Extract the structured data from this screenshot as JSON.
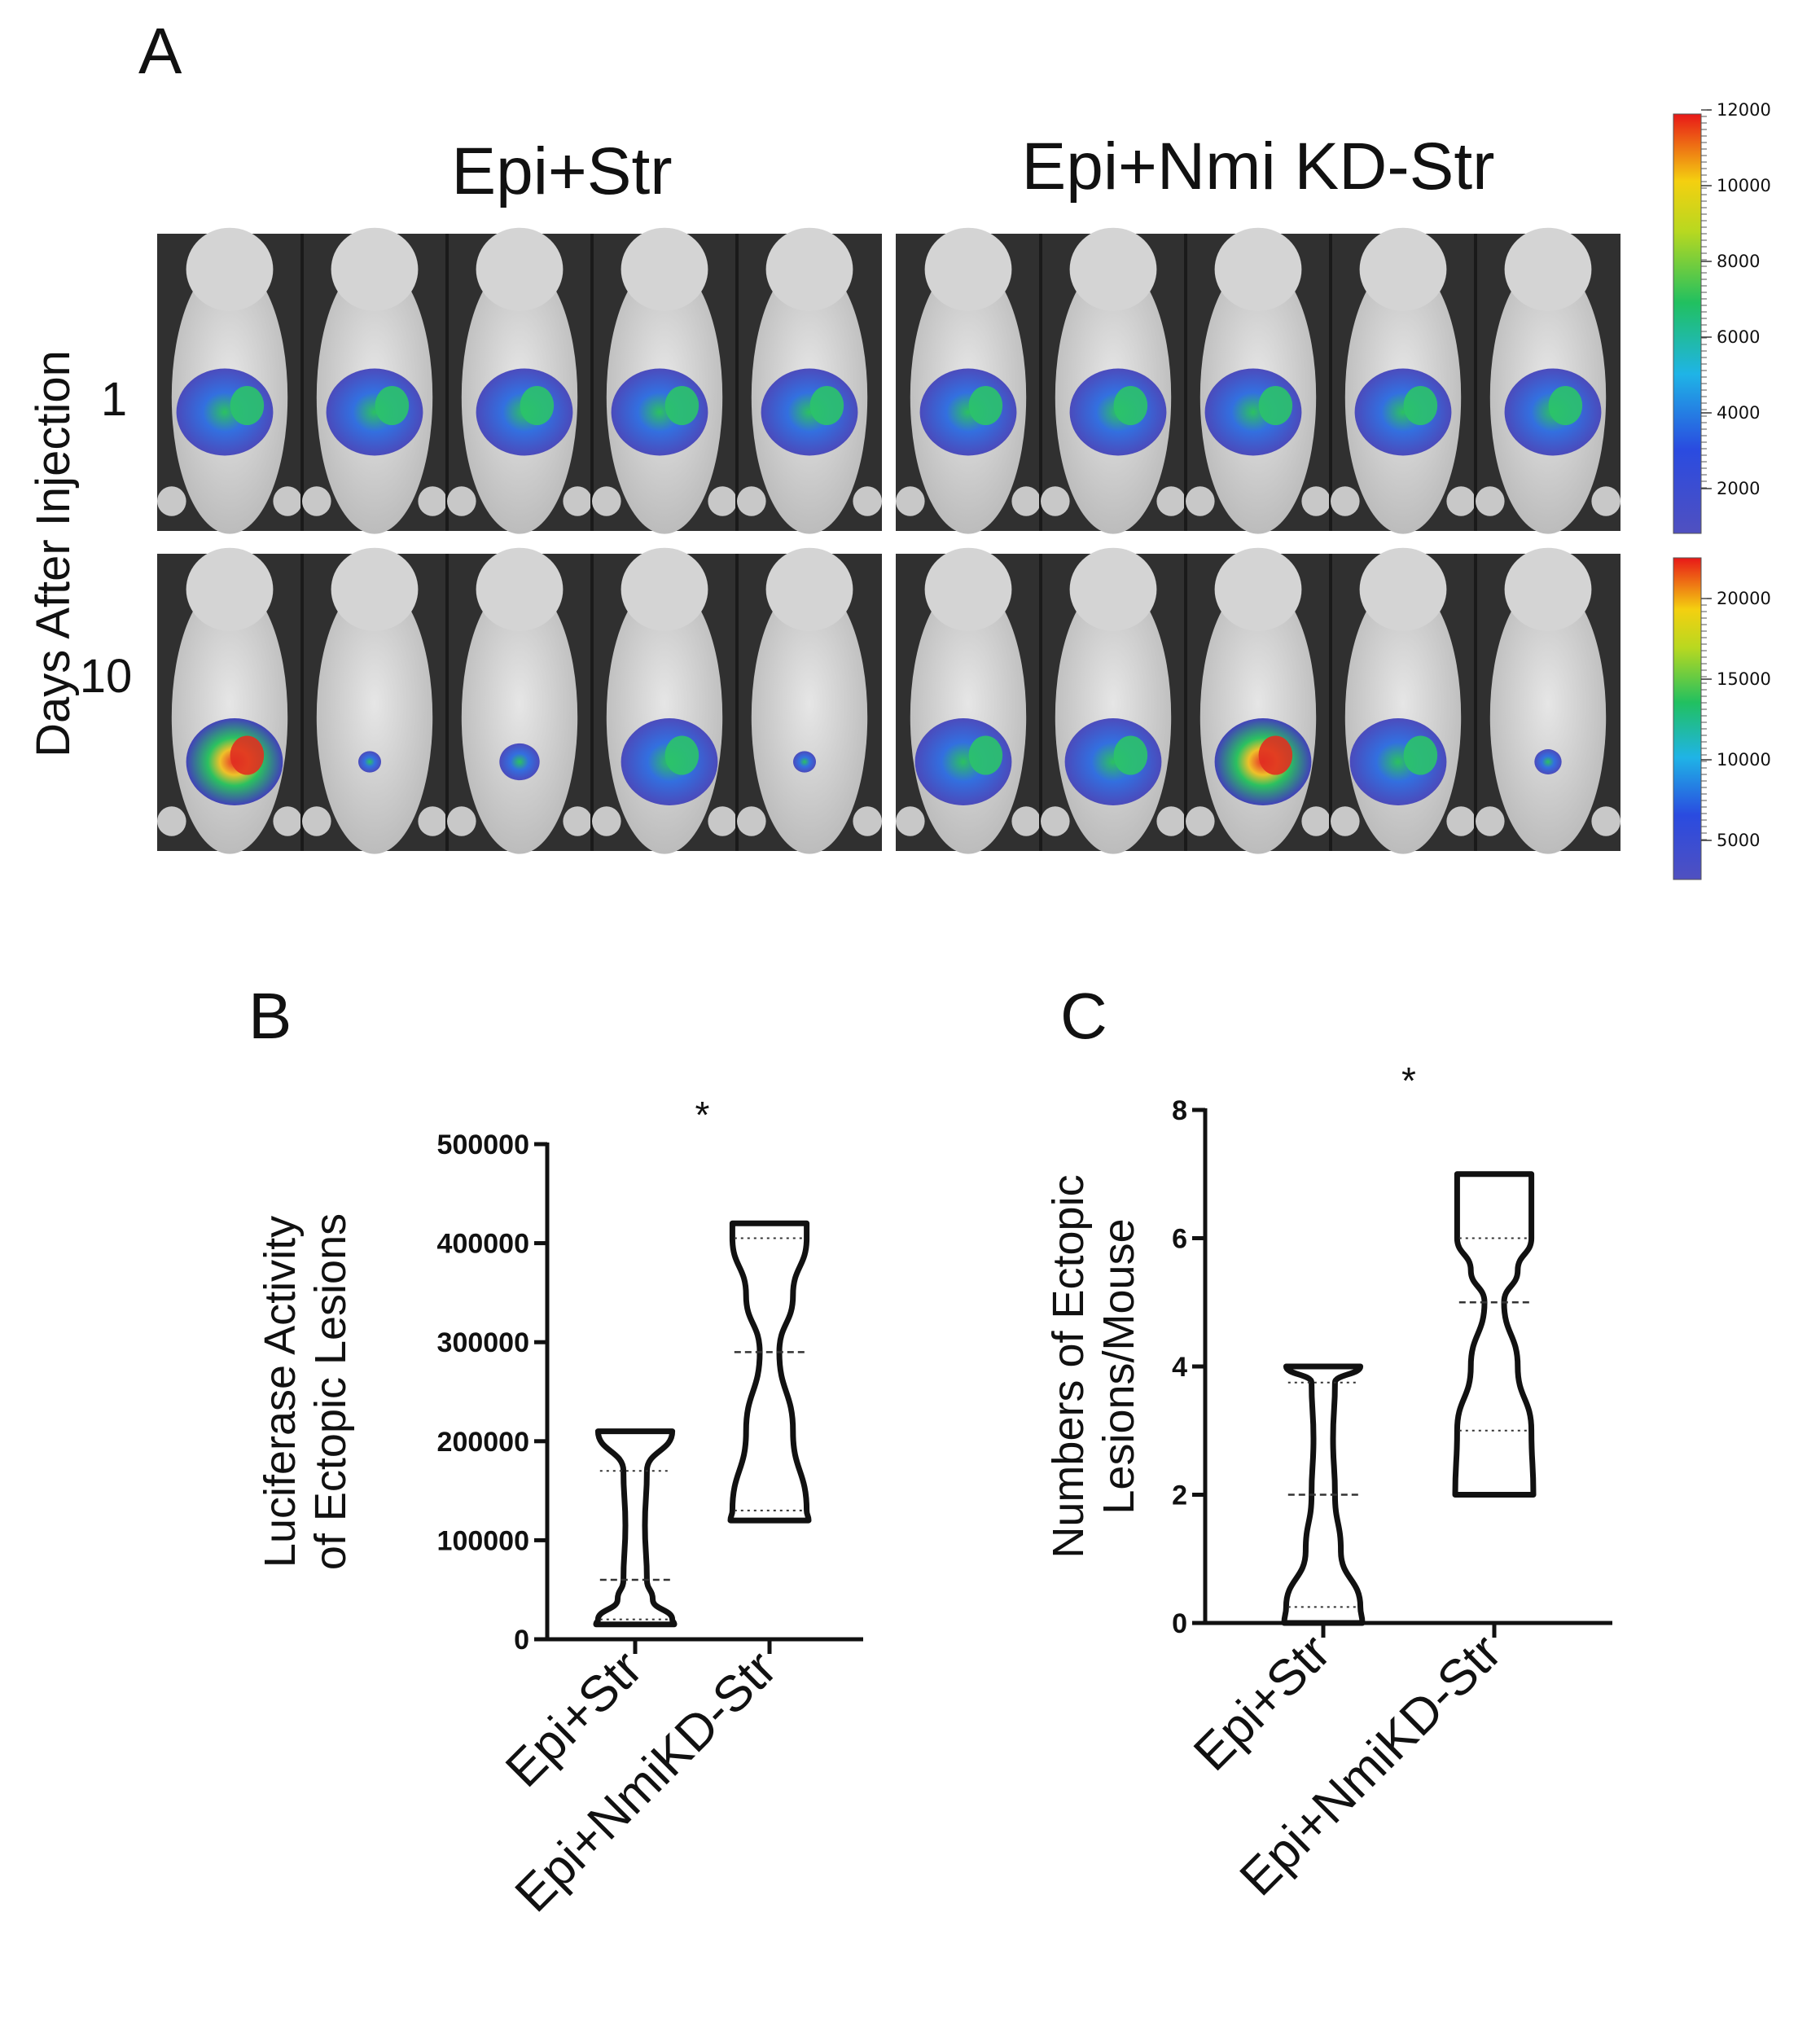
{
  "panel_a": {
    "letter": "A",
    "groups": [
      "Epi+Str",
      "Epi+Nmi KD-Str"
    ],
    "y_axis_title": "Days After Injection",
    "rows": [
      "1",
      "10"
    ],
    "scale_top": {
      "ticks": [
        "12000",
        "10000",
        "8000",
        "6000",
        "4000",
        "2000"
      ]
    },
    "scale_bottom": {
      "ticks": [
        "20000",
        "15000",
        "10000",
        "5000"
      ]
    },
    "colors": {
      "background": "#303030",
      "mouse": "#d8d8d8",
      "signal_low": "#3a3ab8",
      "signal_mid": "#22b45a",
      "signal_high": "#e02020"
    }
  },
  "chart_data": [
    {
      "panel": "B",
      "type": "violin",
      "title": "",
      "significance": "*",
      "categories": [
        "Epi+Str",
        "Epi+NmiKD-Str"
      ],
      "ylabel": "Luciferase Activity of Ectopic Lesions",
      "ylabel_lines": [
        "Luciferase Activity",
        "of Ectopic Lesions"
      ],
      "ylim": [
        0,
        500000
      ],
      "yticks": [
        "0",
        "100000",
        "200000",
        "300000",
        "400000",
        "500000"
      ],
      "series": [
        {
          "name": "Epi+Str",
          "min": 15000,
          "q1": 20000,
          "median": 60000,
          "q3": 170000,
          "max": 210000
        },
        {
          "name": "Epi+NmiKD-Str",
          "min": 120000,
          "q1": 130000,
          "median": 290000,
          "q3": 405000,
          "max": 420000
        }
      ]
    },
    {
      "panel": "C",
      "type": "violin",
      "title": "",
      "significance": "*",
      "categories": [
        "Epi+Str",
        "Epi+NmiKD-Str"
      ],
      "ylabel": "Numbers of Ectopic Lesions/Mouse",
      "ylabel_lines": [
        "Numbers of Ectopic",
        "Lesions/Mouse"
      ],
      "ylim": [
        0,
        8
      ],
      "yticks": [
        "0",
        "2",
        "4",
        "6",
        "8"
      ],
      "series": [
        {
          "name": "Epi+Str",
          "min": 0,
          "q1": 0.25,
          "median": 2,
          "q3": 3.75,
          "max": 4
        },
        {
          "name": "Epi+NmiKD-Str",
          "min": 2,
          "q1": 3,
          "median": 5,
          "q3": 6,
          "max": 7
        }
      ]
    }
  ]
}
